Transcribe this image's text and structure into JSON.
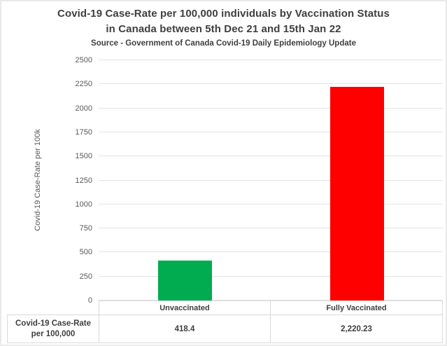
{
  "title": {
    "line1": "Covid-19 Case-Rate per 100,000 individuals by Vaccination Status",
    "line2": "in Canada between 5th Dec 21 and 15th Jan 22",
    "source": "Source - Government of Canada Covid-19 Daily Epidemiology Update"
  },
  "chart_data": {
    "type": "bar",
    "title": "Covid-19 Case-Rate per 100,000 individuals by Vaccination Status in Canada between 5th Dec 21 and 15th Jan 22",
    "subtitle": "Source - Government of Canada Covid-19 Daily Epidemiology Update",
    "categories": [
      "Unvaccinated",
      "Fully Vaccinated"
    ],
    "values": [
      418.4,
      2220.23
    ],
    "value_labels": [
      "418.4",
      "2,220.23"
    ],
    "bar_colors": [
      "#00ac4f",
      "#ff0000"
    ],
    "xlabel": "",
    "ylabel": "Covid-19 Case-Rate per 100k",
    "ylim": [
      0,
      2500
    ],
    "yticks": [
      0,
      250,
      500,
      750,
      1000,
      1250,
      1500,
      1750,
      2000,
      2250,
      2500
    ],
    "grid": true,
    "legend": false,
    "data_table": {
      "row_label": "Covid-19 Case-Rate per 100,000",
      "values": [
        "418.4",
        "2,220.23"
      ]
    }
  },
  "colors": {
    "title_text": "#3f3f3f",
    "axis_text": "#595959",
    "gridline": "#e3e3e3",
    "table_border": "#d9d9d9",
    "bar_unvaccinated": "#00ac4f",
    "bar_fully_vaccinated": "#ff0000",
    "background": "#ffffff"
  }
}
